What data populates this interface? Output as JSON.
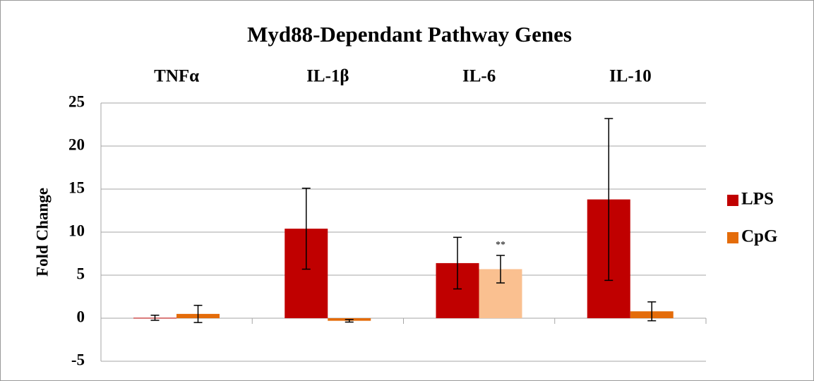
{
  "chart_data": {
    "type": "bar",
    "title": "Myd88-Dependant Pathway Genes",
    "y_label": "Fold Change",
    "categories": [
      "TNFα",
      "IL-1β",
      "IL-6",
      "IL-10"
    ],
    "series": [
      {
        "name": "LPS",
        "color": "#c00000",
        "colors": [
          "#c00000",
          "#c00000",
          "#c00000",
          "#c00000"
        ],
        "values": [
          0.05,
          10.4,
          6.4,
          13.8
        ],
        "errors": [
          0.3,
          4.7,
          3.0,
          9.4
        ]
      },
      {
        "name": "CpG",
        "color": "#e46c0a",
        "colors": [
          "#e46c0a",
          "#e46c0a",
          "#fac090",
          "#e46c0a"
        ],
        "values": [
          0.5,
          -0.3,
          5.7,
          0.8
        ],
        "errors": [
          1.0,
          0.15,
          1.6,
          1.1
        ]
      }
    ],
    "annotations": [
      {
        "text": "**",
        "series_index": 1,
        "category_index": 2
      }
    ],
    "ylim": [
      -5,
      25
    ],
    "yticks": [
      -5,
      0,
      5,
      10,
      15,
      20,
      25
    ],
    "grid": true,
    "legend": "right"
  }
}
